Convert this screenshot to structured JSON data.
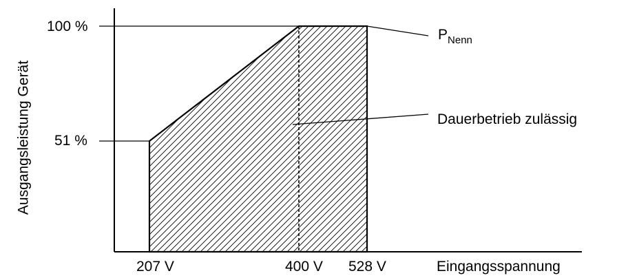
{
  "y_axis": {
    "label": "Ausgangsleistung Gerät",
    "ticks": [
      "100 %",
      "51 %"
    ]
  },
  "x_axis": {
    "label": "Eingangsspannung",
    "ticks": [
      "207 V",
      "400 V",
      "528 V"
    ]
  },
  "annotations": {
    "rated_power_main": "P",
    "rated_power_sub": "Nenn",
    "operating_region": "Dauerbetrieb zulässig"
  },
  "chart_data": {
    "type": "area",
    "title": "",
    "xlabel": "Eingangsspannung",
    "ylabel": "Ausgangsleistung Gerät",
    "x_unit": "V",
    "y_unit": "%",
    "x": [
      207,
      400,
      528
    ],
    "series": [
      {
        "values": [
          51,
          100,
          100
        ]
      }
    ],
    "reference_line_x": 400,
    "fill": "hatched",
    "grid": false,
    "legend": "none"
  },
  "colors": {
    "stroke": "#000000",
    "background": "#ffffff"
  }
}
